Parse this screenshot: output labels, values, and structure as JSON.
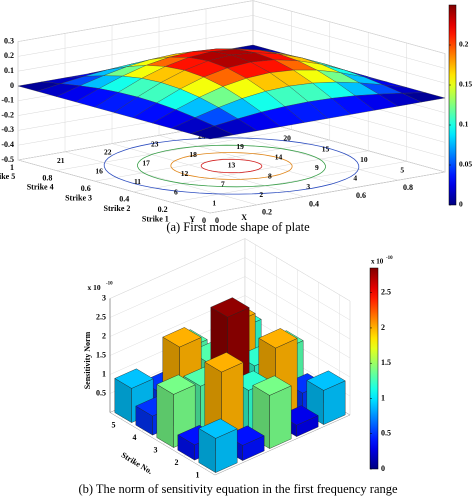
{
  "chart_data": [
    {
      "type": "surface",
      "caption": "(a) First mode shape of plate",
      "xlabel": "X",
      "ylabel": "Y",
      "row_labels": [
        "Strike 1",
        "Strike 2",
        "Strike 3",
        "Strike 4",
        "Strike 5"
      ],
      "point_labels": [
        1,
        2,
        3,
        4,
        5,
        6,
        7,
        8,
        9,
        10,
        11,
        12,
        13,
        14,
        15,
        16,
        17,
        18,
        19,
        20,
        21,
        22,
        23,
        24,
        25
      ],
      "xticks": [
        0,
        0.2,
        0.4,
        0.6,
        0.8,
        1
      ],
      "yticks": [
        0,
        0.2,
        0.4,
        0.6,
        0.8,
        1
      ],
      "zlim": [
        -0.5,
        0.3
      ],
      "zticks": [
        -0.5,
        -0.4,
        -0.3,
        -0.2,
        -0.1,
        0,
        0.1,
        0.2,
        0.3
      ],
      "clim": [
        0,
        0.25
      ],
      "cticks": [
        0,
        0.05,
        0.1,
        0.15,
        0.2
      ],
      "grid": [
        0,
        0.1,
        0.2,
        0.3,
        0.4,
        0.5,
        0.6,
        0.7,
        0.8,
        0.9,
        1
      ],
      "z": [
        [
          0,
          0,
          0,
          0,
          0,
          0,
          0,
          0,
          0,
          0,
          0
        ],
        [
          0,
          0.024,
          0.045,
          0.063,
          0.073,
          0.077,
          0.073,
          0.063,
          0.045,
          0.024,
          0
        ],
        [
          0,
          0.045,
          0.086,
          0.119,
          0.14,
          0.147,
          0.14,
          0.119,
          0.086,
          0.045,
          0
        ],
        [
          0,
          0.063,
          0.119,
          0.164,
          0.192,
          0.202,
          0.192,
          0.164,
          0.119,
          0.063,
          0
        ],
        [
          0,
          0.073,
          0.14,
          0.192,
          0.226,
          0.238,
          0.226,
          0.192,
          0.14,
          0.073,
          0
        ],
        [
          0,
          0.077,
          0.147,
          0.202,
          0.238,
          0.25,
          0.238,
          0.202,
          0.147,
          0.077,
          0
        ],
        [
          0,
          0.073,
          0.14,
          0.192,
          0.226,
          0.238,
          0.226,
          0.192,
          0.14,
          0.073,
          0
        ],
        [
          0,
          0.063,
          0.119,
          0.164,
          0.192,
          0.202,
          0.192,
          0.164,
          0.119,
          0.063,
          0
        ],
        [
          0,
          0.045,
          0.086,
          0.119,
          0.14,
          0.147,
          0.14,
          0.119,
          0.086,
          0.045,
          0
        ],
        [
          0,
          0.024,
          0.045,
          0.063,
          0.073,
          0.077,
          0.073,
          0.063,
          0.045,
          0.024,
          0
        ],
        [
          0,
          0,
          0,
          0,
          0,
          0,
          0,
          0,
          0,
          0,
          0
        ]
      ]
    },
    {
      "type": "bar3d",
      "caption": "(b) The norm of sensitivity equation in the first frequency range",
      "zlabel": "Sensitivity Norm",
      "ylabel": "Strike No.",
      "multiplier": "x 10",
      "exponent": "-10",
      "strike_ticks": [
        1,
        2,
        3,
        4,
        5
      ],
      "zlim": [
        0,
        3
      ],
      "zticks": [
        0.5,
        1,
        1.5,
        2,
        2.5,
        3
      ],
      "clim": [
        0,
        2.85
      ],
      "cticks": [
        0,
        0.5,
        1,
        1.5,
        2,
        2.5
      ],
      "values": [
        [
          0.9,
          0.4,
          1.4,
          0.3,
          0.9
        ],
        [
          0.4,
          2.0,
          1.2,
          2.0,
          0.5
        ],
        [
          1.4,
          1.3,
          2.8,
          1.2,
          1.3
        ],
        [
          0.5,
          2.0,
          1.3,
          2.0,
          0.4
        ],
        [
          0.9,
          0.5,
          1.3,
          0.4,
          1.2
        ]
      ]
    }
  ]
}
